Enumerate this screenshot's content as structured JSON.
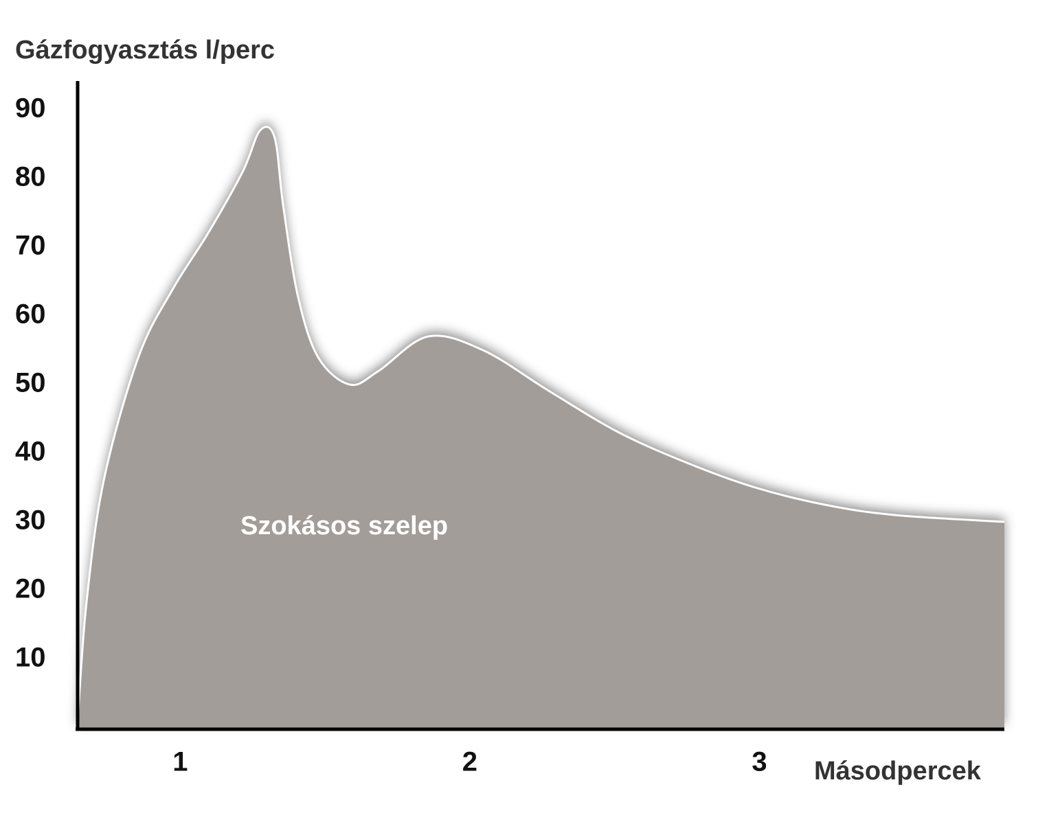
{
  "chart_data": {
    "type": "area",
    "y_label": "Gázfogyasztás l/perc",
    "x_label": "Másodpercek",
    "annotation": "Szokásos szelep",
    "x": [
      0.66,
      0.69,
      0.75,
      0.87,
      0.99,
      1.11,
      1.23,
      1.29,
      1.34,
      1.37,
      1.42,
      1.49,
      1.6,
      1.7,
      1.87,
      2.06,
      2.29,
      2.53,
      2.77,
      3.0,
      3.24,
      3.48,
      3.86
    ],
    "values": [
      1,
      18,
      36,
      54,
      64,
      72,
      81,
      87,
      86,
      76,
      63,
      54,
      50,
      52,
      57,
      55,
      49,
      43,
      38.5,
      35,
      32.5,
      31,
      30
    ],
    "color": "#a39d99",
    "xlim": [
      0.66,
      3.86
    ],
    "xticks": [
      1,
      2,
      3
    ],
    "ylim": [
      0,
      94
    ],
    "yticks": [
      10,
      20,
      30,
      40,
      50,
      60,
      70,
      80,
      90
    ],
    "grid": false
  }
}
